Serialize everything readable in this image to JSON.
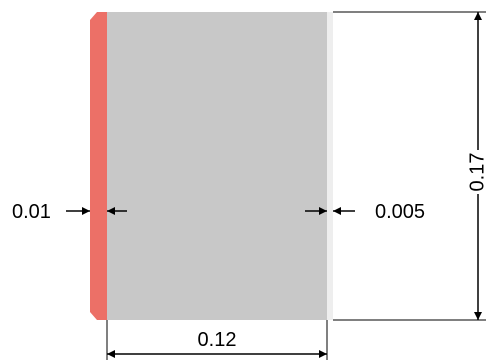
{
  "colors": {
    "red_layer": "#ec7067",
    "grey_block": "#c8c8c8",
    "thin_layer": "#eeeeee",
    "lines": "#000000"
  },
  "dimensions": {
    "left_thickness": "0.01",
    "right_thickness": "0.005",
    "width": "0.12",
    "height": "0.17"
  }
}
